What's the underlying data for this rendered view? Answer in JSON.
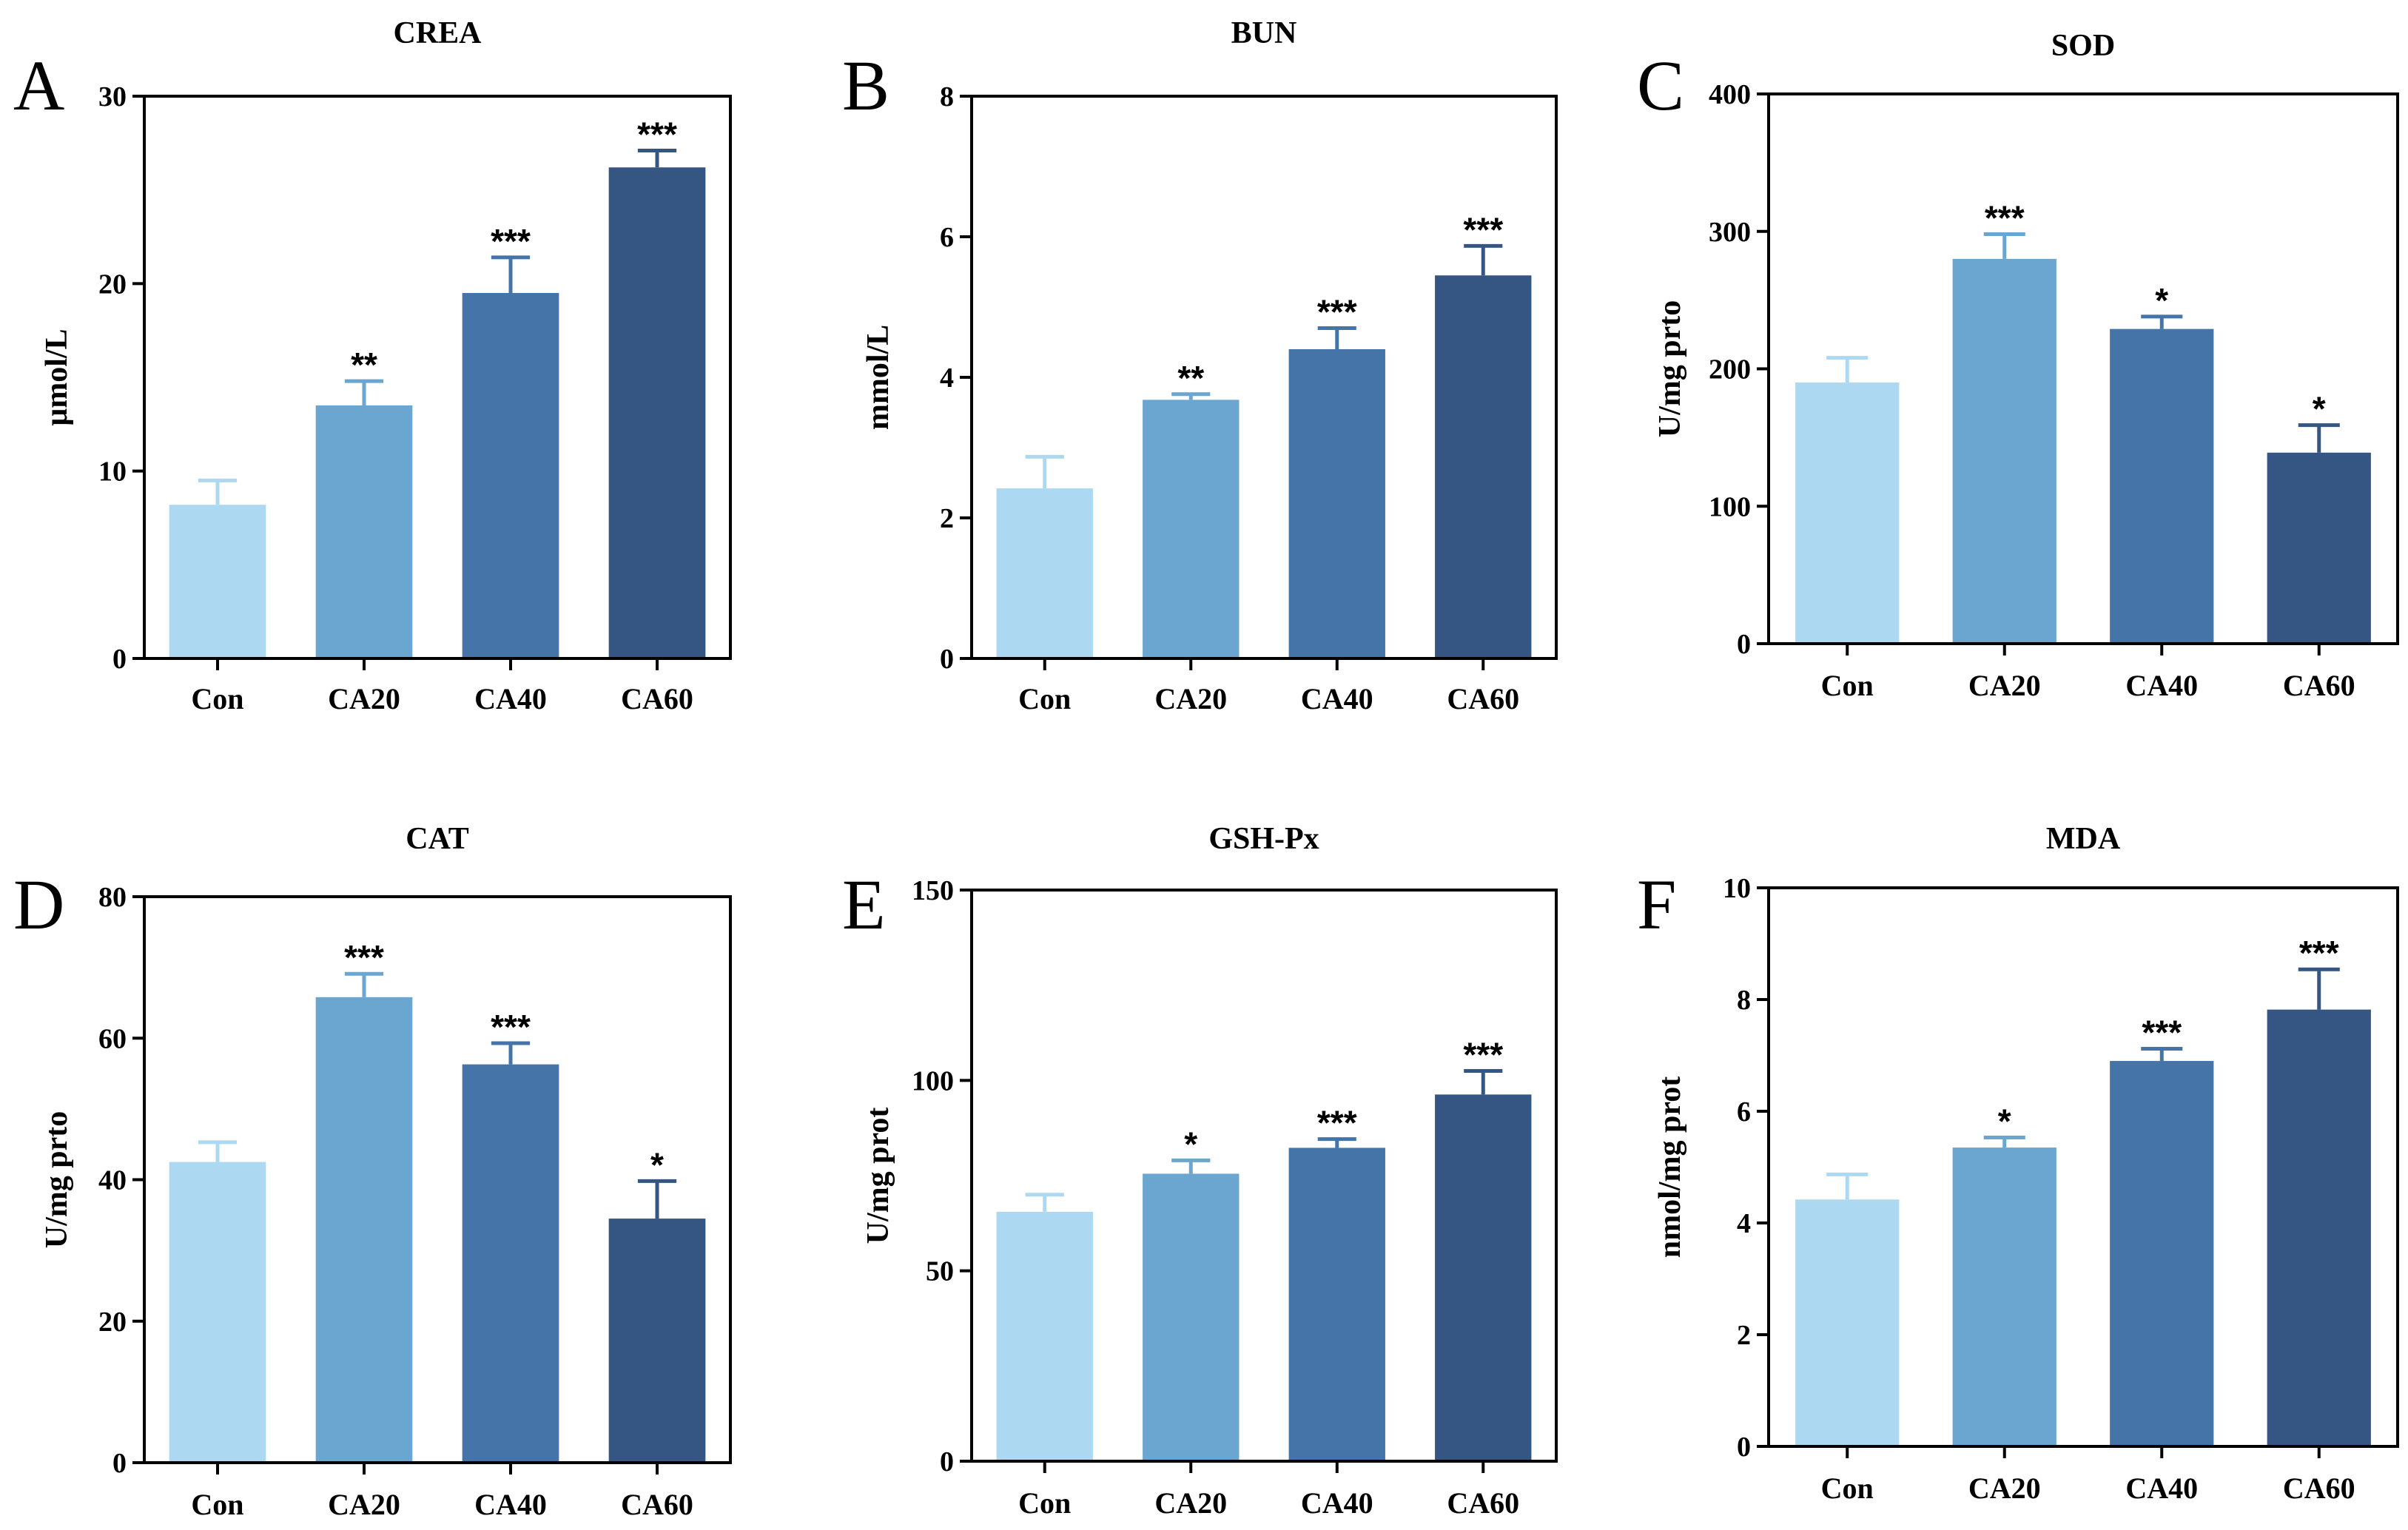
{
  "colors": [
    "#add8f2",
    "#6aa6cf",
    "#4474a8",
    "#355682"
  ],
  "chart_data": [
    {
      "type": "bar",
      "panel": "A",
      "title": "CREA",
      "xlabel": "",
      "ylabel": "μmol/L",
      "categories": [
        "Con",
        "CA20",
        "CA40",
        "CA60"
      ],
      "values": [
        8.2,
        13.5,
        19.5,
        26.2
      ],
      "errors": [
        1.3,
        1.3,
        1.9,
        0.9
      ],
      "significance": [
        "",
        "**",
        "***",
        "***"
      ],
      "ylim": [
        0,
        30
      ],
      "yticks": [
        "0",
        "10",
        "20",
        "30"
      ],
      "ytick_values": [
        0,
        10,
        20,
        30
      ]
    },
    {
      "type": "bar",
      "panel": "B",
      "title": "BUN",
      "xlabel": "",
      "ylabel": "mmol/L",
      "categories": [
        "Con",
        "CA20",
        "CA40",
        "CA60"
      ],
      "values": [
        2.42,
        3.68,
        4.4,
        5.45
      ],
      "errors": [
        0.45,
        0.08,
        0.3,
        0.42
      ],
      "significance": [
        "",
        "**",
        "***",
        "***"
      ],
      "ylim": [
        0,
        8
      ],
      "yticks": [
        "0",
        "2",
        "4",
        "6",
        "8"
      ],
      "ytick_values": [
        0,
        2,
        4,
        6,
        8
      ]
    },
    {
      "type": "bar",
      "panel": "C",
      "title": "SOD",
      "xlabel": "",
      "ylabel": "U/mg prto",
      "categories": [
        "Con",
        "CA20",
        "CA40",
        "CA60"
      ],
      "values": [
        190,
        280,
        229,
        139
      ],
      "errors": [
        18,
        18,
        9,
        20
      ],
      "significance": [
        "",
        "***",
        "*",
        "*"
      ],
      "ylim": [
        0,
        400
      ],
      "yticks": [
        "0",
        "100",
        "200",
        "300",
        "400"
      ],
      "ytick_values": [
        0,
        100,
        200,
        300,
        400
      ]
    },
    {
      "type": "bar",
      "panel": "D",
      "title": "CAT",
      "xlabel": "",
      "ylabel": "U/mg prto",
      "categories": [
        "Con",
        "CA20",
        "CA40",
        "CA60"
      ],
      "values": [
        42.5,
        65.8,
        56.3,
        34.5
      ],
      "errors": [
        2.8,
        3.3,
        3.0,
        5.3
      ],
      "significance": [
        "",
        "***",
        "***",
        "*"
      ],
      "ylim": [
        0,
        80
      ],
      "yticks": [
        "0",
        "20",
        "40",
        "60",
        "80"
      ],
      "ytick_values": [
        0,
        20,
        40,
        60,
        80
      ]
    },
    {
      "type": "bar",
      "panel": "E",
      "title": "GSH-Px",
      "xlabel": "",
      "ylabel": "U/mg prot",
      "categories": [
        "Con",
        "CA20",
        "CA40",
        "CA60"
      ],
      "values": [
        65.5,
        75.5,
        82.3,
        96.3
      ],
      "errors": [
        4.5,
        3.5,
        2.3,
        6.2
      ],
      "significance": [
        "",
        "*",
        "***",
        "***"
      ],
      "ylim": [
        0,
        150
      ],
      "yticks": [
        "0",
        "50",
        "100",
        "150"
      ],
      "ytick_values": [
        0,
        50,
        100,
        150
      ]
    },
    {
      "type": "bar",
      "panel": "F",
      "title": "MDA",
      "xlabel": "",
      "ylabel": "nmol/mg prot",
      "categories": [
        "Con",
        "CA20",
        "CA40",
        "CA60"
      ],
      "values": [
        4.42,
        5.35,
        6.9,
        7.82
      ],
      "errors": [
        0.45,
        0.18,
        0.22,
        0.72
      ],
      "significance": [
        "",
        "*",
        "***",
        "***"
      ],
      "ylim": [
        0,
        10
      ],
      "yticks": [
        "0",
        "2",
        "4",
        "6",
        "8",
        "10"
      ],
      "ytick_values": [
        0,
        2,
        4,
        6,
        8,
        10
      ]
    }
  ]
}
